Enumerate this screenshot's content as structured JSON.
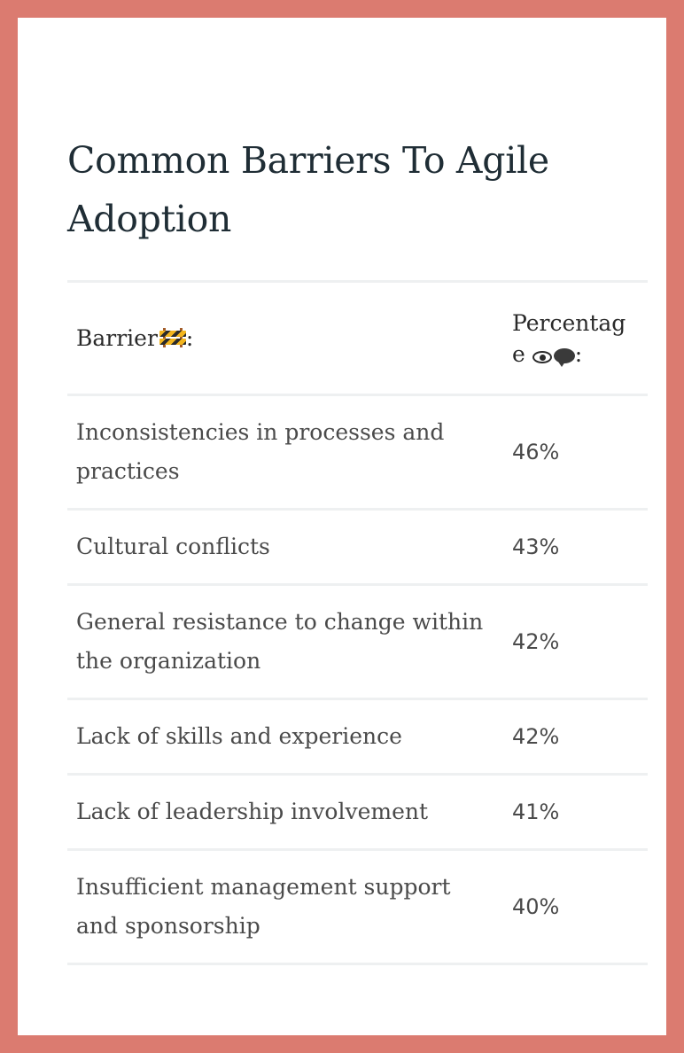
{
  "title": "Common Barriers To Agile Adoption",
  "table": {
    "header": {
      "barrier_label": "Barrier",
      "barrier_icon": "construction-barrier-icon",
      "barrier_suffix": ":",
      "percentage_label": "Percentage",
      "percentage_icons": [
        "eye-icon",
        "speech-bubble-icon"
      ],
      "percentage_suffix": ":"
    },
    "rows": [
      {
        "barrier": "Inconsistencies in processes and practices",
        "percentage": "46%"
      },
      {
        "barrier": "Cultural conflicts",
        "percentage": "43%"
      },
      {
        "barrier": "General resistance to change within the organization",
        "percentage": "42%"
      },
      {
        "barrier": "Lack of skills and experience",
        "percentage": "42%"
      },
      {
        "barrier": "Lack of leadership involvement",
        "percentage": "41%"
      },
      {
        "barrier": "Insufficient management support and sponsorship",
        "percentage": "40%"
      }
    ]
  },
  "colors": {
    "frame": "#db7b70",
    "title": "#1f2d35",
    "body_text": "#4a4a4a",
    "divider": "#eef0f1"
  }
}
